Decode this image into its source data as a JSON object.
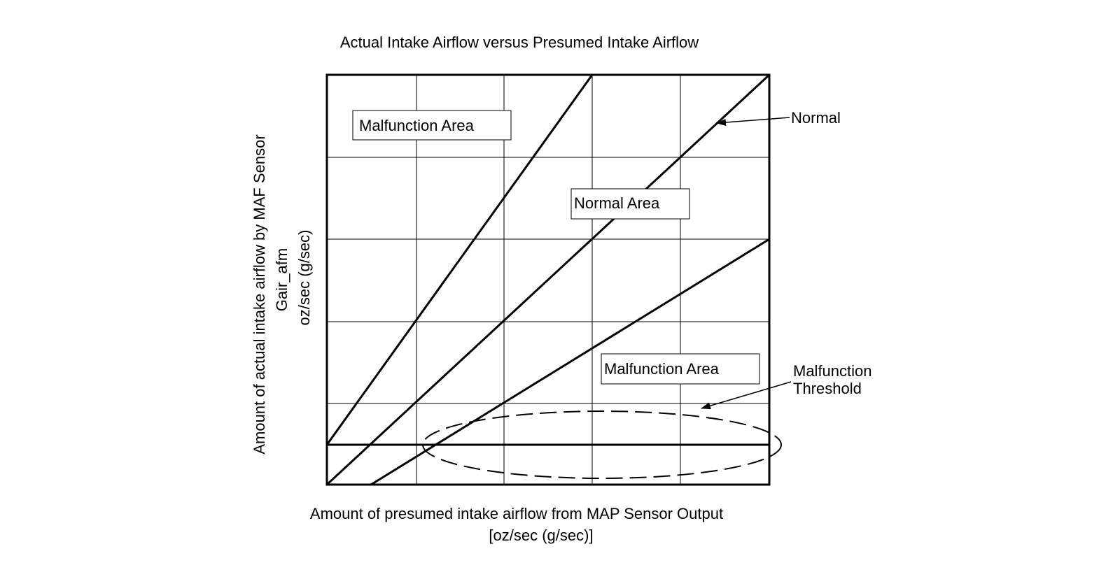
{
  "title": "Actual Intake Airflow versus Presumed Intake Airflow",
  "y_axis": {
    "line1": "Amount of actual intake airflow by MAF Sensor",
    "line2": "Gair_afm",
    "line3": "oz/sec (g/sec)"
  },
  "x_axis": {
    "line1": "Amount of presumed intake airflow from MAP Sensor Output",
    "line2": "[oz/sec (g/sec)]"
  },
  "regions": {
    "upper_malfunction": "Malfunction Area",
    "normal": "Normal Area",
    "lower_malfunction": "Malfunction Area"
  },
  "callouts": {
    "normal_line": "Normal",
    "threshold_line1": "Malfunction",
    "threshold_line2": "Threshold"
  },
  "colors": {
    "ink": "#000000",
    "grid": "#000000",
    "background": "#ffffff"
  }
}
